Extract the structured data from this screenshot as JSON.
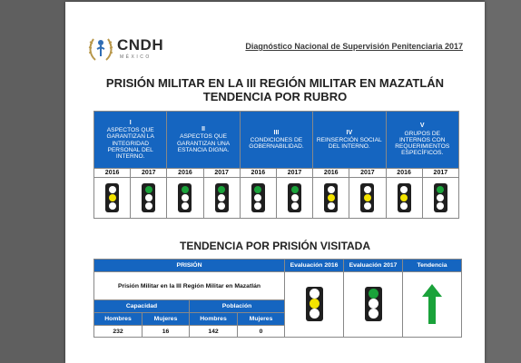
{
  "header": {
    "logo_text": "CNDH",
    "logo_sub": "MÉXICO",
    "doc_title": "Diagnóstico Nacional de Supervisión Penitenciaria 2017"
  },
  "titles": {
    "line1": "PRISIÓN MILITAR EN LA III REGIÓN MILITAR EN MAZATLÁN",
    "line2": "TENDENCIA POR RUBRO",
    "section2": "TENDENCIA POR PRISIÓN VISITADA"
  },
  "colors": {
    "green": "#1aa23a",
    "yellow": "#f4e400",
    "off": "#ffffff",
    "header_blue": "#1565c0",
    "arrow": "#1aa23a"
  },
  "rubros": [
    {
      "numeral": "I",
      "label": "ASPECTOS QUE GARANTIZAN LA INTEGRIDAD PERSONAL DEL INTERNO.",
      "y1": "2016",
      "y2": "2017",
      "light1": "yellow",
      "light2": "green"
    },
    {
      "numeral": "II",
      "label": "ASPECTOS QUE GARANTIZAN UNA ESTANCIA DIGNA.",
      "y1": "2016",
      "y2": "2017",
      "light1": "green",
      "light2": "green"
    },
    {
      "numeral": "III",
      "label": "CONDICIONES DE GOBERNABILIDAD.",
      "y1": "2016",
      "y2": "2017",
      "light1": "green",
      "light2": "green"
    },
    {
      "numeral": "IV",
      "label": "REINSERCIÓN SOCIAL DEL INTERNO.",
      "y1": "2016",
      "y2": "2017",
      "light1": "yellow",
      "light2": "yellow"
    },
    {
      "numeral": "V",
      "label": "GRUPOS DE INTERNOS CON REQUERIMIENTOS ESPECÍFICOS.",
      "y1": "2016",
      "y2": "2017",
      "light1": "yellow",
      "light2": "green"
    }
  ],
  "prision": {
    "header_prision": "PRISIÓN",
    "header_eval2016": "Evaluación 2016",
    "header_eval2017": "Evaluación 2017",
    "header_tendencia": "Tendencia",
    "name": "Prisión Militar en la III Región Militar en Mazatlán",
    "capacidad": "Capacidad",
    "poblacion": "Población",
    "hombres_label": "Hombres",
    "mujeres_label": "Mujeres",
    "cap_hombres": "232",
    "cap_mujeres": "16",
    "pob_hombres": "142",
    "pob_mujeres": "0",
    "eval2016": "yellow",
    "eval2017": "green",
    "tendencia": "up"
  }
}
